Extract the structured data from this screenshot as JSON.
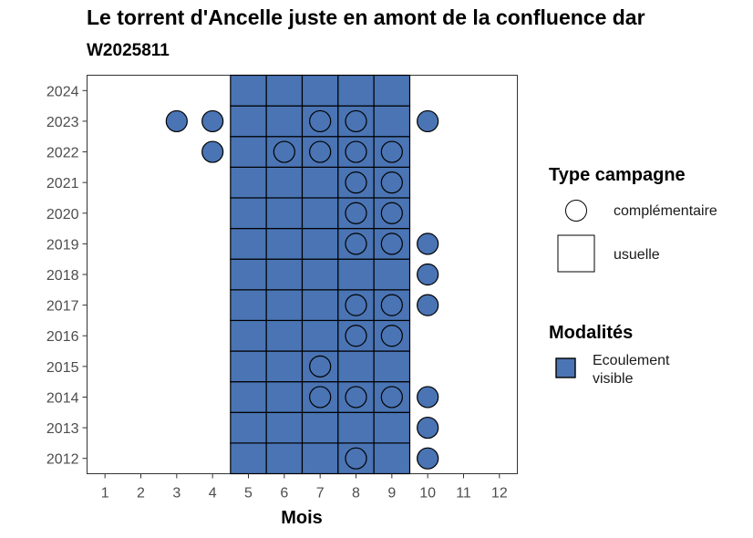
{
  "chart_data": {
    "type": "heatmap",
    "title": "Le torrent d'Ancelle juste en amont de la confluence dar",
    "subtitle": "W2025811",
    "xlabel": "Mois",
    "ylabel": "",
    "x_ticks": [
      1,
      2,
      3,
      4,
      5,
      6,
      7,
      8,
      9,
      10,
      11,
      12
    ],
    "y_ticks": [
      2012,
      2013,
      2014,
      2015,
      2016,
      2017,
      2018,
      2019,
      2020,
      2021,
      2022,
      2023,
      2024
    ],
    "xlim": [
      0.5,
      12.5
    ],
    "ylim": [
      2011.5,
      2024.5
    ],
    "fill_color": "#4a74b4",
    "tiles": {
      "campaign_type": "usuelle",
      "modalite": "Ecoulement visible",
      "months": [
        5,
        6,
        7,
        8,
        9
      ],
      "years": [
        2012,
        2013,
        2014,
        2015,
        2016,
        2017,
        2018,
        2019,
        2020,
        2021,
        2022,
        2023,
        2024
      ]
    },
    "points": [
      {
        "year": 2023,
        "month": 3
      },
      {
        "year": 2023,
        "month": 4
      },
      {
        "year": 2023,
        "month": 7
      },
      {
        "year": 2023,
        "month": 8
      },
      {
        "year": 2023,
        "month": 10
      },
      {
        "year": 2022,
        "month": 4
      },
      {
        "year": 2022,
        "month": 6
      },
      {
        "year": 2022,
        "month": 7
      },
      {
        "year": 2022,
        "month": 8
      },
      {
        "year": 2022,
        "month": 9
      },
      {
        "year": 2021,
        "month": 8
      },
      {
        "year": 2021,
        "month": 9
      },
      {
        "year": 2020,
        "month": 8
      },
      {
        "year": 2020,
        "month": 9
      },
      {
        "year": 2019,
        "month": 8
      },
      {
        "year": 2019,
        "month": 9
      },
      {
        "year": 2019,
        "month": 10
      },
      {
        "year": 2018,
        "month": 10
      },
      {
        "year": 2017,
        "month": 8
      },
      {
        "year": 2017,
        "month": 9
      },
      {
        "year": 2017,
        "month": 10
      },
      {
        "year": 2016,
        "month": 8
      },
      {
        "year": 2016,
        "month": 9
      },
      {
        "year": 2015,
        "month": 7
      },
      {
        "year": 2014,
        "month": 7
      },
      {
        "year": 2014,
        "month": 8
      },
      {
        "year": 2014,
        "month": 9
      },
      {
        "year": 2014,
        "month": 10
      },
      {
        "year": 2013,
        "month": 10
      },
      {
        "year": 2012,
        "month": 8
      },
      {
        "year": 2012,
        "month": 10
      }
    ],
    "points_campaign_type": "complémentaire",
    "points_modalite": "Ecoulement visible",
    "grid": false,
    "legend_position": "right",
    "legend": {
      "type_title": "Type campagne",
      "type_items": [
        {
          "shape": "circle",
          "label": "complémentaire"
        },
        {
          "shape": "square",
          "label": "usuelle"
        }
      ],
      "modalite_title": "Modalités",
      "modalite_items": [
        {
          "label_line1": "Ecoulement",
          "label_line2": "visible",
          "color": "#4a74b4"
        }
      ]
    }
  }
}
